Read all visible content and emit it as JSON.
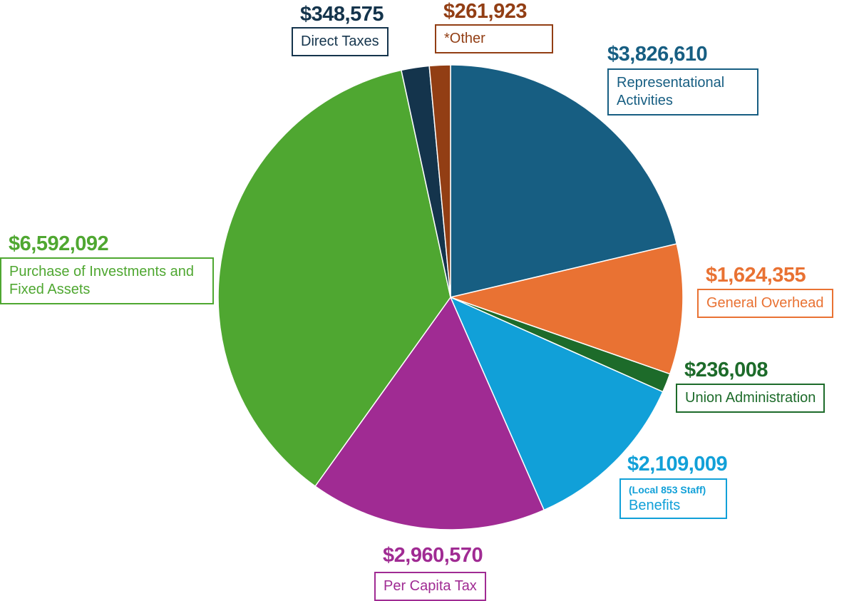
{
  "chart_data": {
    "type": "pie",
    "title": "",
    "start_angle_deg": 0,
    "direction": "clockwise",
    "slices": [
      {
        "value_label": "$3,826,610",
        "value": 3826610,
        "label": "Representational Activities",
        "color": "#175E82"
      },
      {
        "value_label": "$1,624,355",
        "value": 1624355,
        "label": "General Overhead",
        "color": "#E97233"
      },
      {
        "value_label": "$236,008",
        "value": 236008,
        "label": "Union Administration",
        "color": "#1D6B2A"
      },
      {
        "value_label": "$2,109,009",
        "value": 2109009,
        "label": "Benefits",
        "sublabel": "(Local 853 Staff)",
        "color": "#11A0D8"
      },
      {
        "value_label": "$2,960,570",
        "value": 2960570,
        "label": "Per Capita Tax",
        "color": "#A02B93"
      },
      {
        "value_label": "$6,592,092",
        "value": 6592092,
        "label": "Purchase of Investments and Fixed Assets",
        "color": "#4FA731"
      },
      {
        "value_label": "$348,575",
        "value": 348575,
        "label": "Direct Taxes",
        "color": "#14344C"
      },
      {
        "value_label": "$261,923",
        "value": 261923,
        "label": "*Other",
        "color": "#923E14"
      }
    ]
  }
}
